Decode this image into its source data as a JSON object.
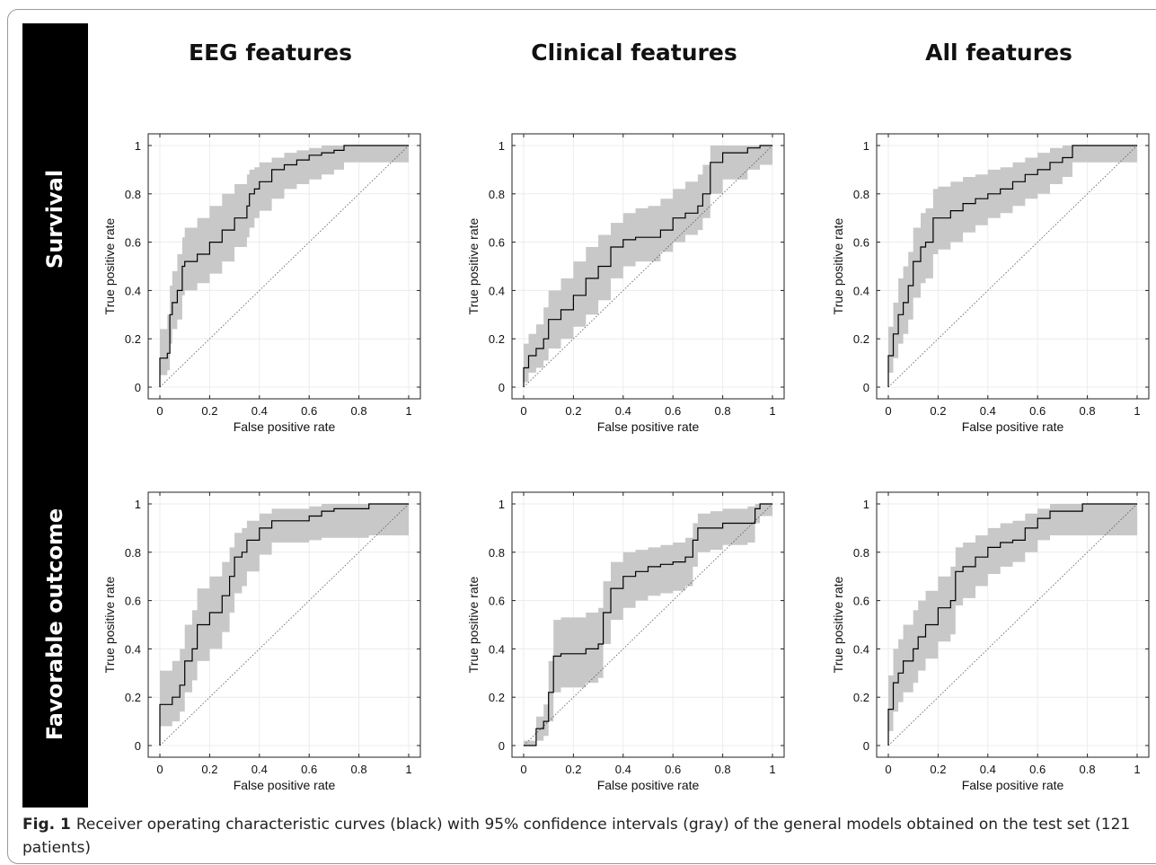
{
  "columns": [
    "EEG features",
    "Clinical features",
    "All features"
  ],
  "rows": [
    "Survival",
    "Favorable outcome"
  ],
  "caption": {
    "label": "Fig. 1",
    "text": "Receiver operating characteristic curves (black) with 95% confidence intervals (gray) of the general models obtained on the test set (121 patients)"
  },
  "colors": {
    "curve": "#000000",
    "ci": "#c8c8c8",
    "band": "#000000"
  },
  "chart_data": [
    {
      "type": "line",
      "row": "Survival",
      "column": "EEG features",
      "xlabel": "False positive rate",
      "ylabel": "True positive rate",
      "xlim": [
        0,
        1
      ],
      "ylim": [
        0,
        1
      ],
      "xticks": [
        "0",
        "0.2",
        "0.4",
        "0.6",
        "0.8",
        "1"
      ],
      "yticks": [
        "0",
        "0.2",
        "0.4",
        "0.6",
        "0.8",
        "1"
      ],
      "grid": true,
      "diagonal": true,
      "x": [
        0,
        0,
        0.03,
        0.04,
        0.05,
        0.07,
        0.09,
        0.1,
        0.15,
        0.2,
        0.25,
        0.3,
        0.35,
        0.36,
        0.38,
        0.4,
        0.45,
        0.5,
        0.55,
        0.6,
        0.65,
        0.7,
        0.74,
        1
      ],
      "y": [
        0,
        0.12,
        0.14,
        0.3,
        0.35,
        0.4,
        0.5,
        0.52,
        0.55,
        0.6,
        0.65,
        0.7,
        0.75,
        0.8,
        0.82,
        0.85,
        0.9,
        0.92,
        0.94,
        0.96,
        0.97,
        0.98,
        1,
        1
      ],
      "ci_upper": [
        0.24,
        0.24,
        0.3,
        0.42,
        0.48,
        0.55,
        0.62,
        0.66,
        0.7,
        0.75,
        0.8,
        0.84,
        0.88,
        0.9,
        0.91,
        0.93,
        0.95,
        0.97,
        0.98,
        0.99,
        1,
        1,
        1,
        1
      ],
      "ci_lower": [
        0.05,
        0.05,
        0.07,
        0.18,
        0.24,
        0.28,
        0.38,
        0.4,
        0.43,
        0.47,
        0.52,
        0.58,
        0.62,
        0.66,
        0.7,
        0.73,
        0.78,
        0.82,
        0.84,
        0.86,
        0.88,
        0.9,
        0.93,
        0.93
      ]
    },
    {
      "type": "line",
      "row": "Survival",
      "column": "Clinical features",
      "xlabel": "False positive rate",
      "ylabel": "True positive rate",
      "xlim": [
        0,
        1
      ],
      "ylim": [
        0,
        1
      ],
      "xticks": [
        "0",
        "0.2",
        "0.4",
        "0.6",
        "0.8",
        "1"
      ],
      "yticks": [
        "0",
        "0.2",
        "0.4",
        "0.6",
        "0.8",
        "1"
      ],
      "grid": true,
      "diagonal": true,
      "x": [
        0,
        0,
        0.02,
        0.05,
        0.08,
        0.1,
        0.15,
        0.2,
        0.25,
        0.3,
        0.35,
        0.4,
        0.45,
        0.5,
        0.55,
        0.6,
        0.65,
        0.7,
        0.72,
        0.75,
        0.8,
        0.9,
        0.95,
        1
      ],
      "y": [
        0,
        0.08,
        0.13,
        0.16,
        0.2,
        0.28,
        0.32,
        0.38,
        0.45,
        0.5,
        0.58,
        0.61,
        0.62,
        0.62,
        0.65,
        0.7,
        0.72,
        0.75,
        0.8,
        0.93,
        0.97,
        0.99,
        1,
        1
      ],
      "ci_upper": [
        0.18,
        0.18,
        0.22,
        0.26,
        0.33,
        0.4,
        0.45,
        0.52,
        0.58,
        0.63,
        0.68,
        0.72,
        0.74,
        0.75,
        0.78,
        0.82,
        0.85,
        0.88,
        0.92,
        1,
        1,
        1,
        1,
        1
      ],
      "ci_lower": [
        0.02,
        0.02,
        0.06,
        0.08,
        0.11,
        0.16,
        0.2,
        0.25,
        0.3,
        0.36,
        0.45,
        0.5,
        0.52,
        0.52,
        0.56,
        0.6,
        0.63,
        0.65,
        0.7,
        0.8,
        0.86,
        0.9,
        0.92,
        0.92
      ]
    },
    {
      "type": "line",
      "row": "Survival",
      "column": "All features",
      "xlabel": "False positive rate",
      "ylabel": "True positive rate",
      "xlim": [
        0,
        1
      ],
      "ylim": [
        0,
        1
      ],
      "xticks": [
        "0",
        "0.2",
        "0.4",
        "0.6",
        "0.8",
        "1"
      ],
      "yticks": [
        "0",
        "0.2",
        "0.4",
        "0.6",
        "0.8",
        "1"
      ],
      "grid": true,
      "diagonal": true,
      "x": [
        0,
        0,
        0.02,
        0.04,
        0.06,
        0.08,
        0.1,
        0.13,
        0.15,
        0.18,
        0.2,
        0.25,
        0.3,
        0.35,
        0.4,
        0.45,
        0.5,
        0.55,
        0.6,
        0.65,
        0.7,
        0.74,
        1
      ],
      "y": [
        0,
        0.13,
        0.22,
        0.3,
        0.35,
        0.42,
        0.52,
        0.58,
        0.6,
        0.7,
        0.7,
        0.73,
        0.76,
        0.78,
        0.8,
        0.82,
        0.85,
        0.88,
        0.9,
        0.93,
        0.95,
        1,
        1
      ],
      "ci_upper": [
        0.25,
        0.25,
        0.35,
        0.45,
        0.5,
        0.56,
        0.66,
        0.72,
        0.74,
        0.82,
        0.83,
        0.85,
        0.87,
        0.88,
        0.9,
        0.91,
        0.93,
        0.95,
        0.97,
        0.99,
        1,
        1,
        1
      ],
      "ci_lower": [
        0.06,
        0.06,
        0.12,
        0.18,
        0.22,
        0.28,
        0.37,
        0.43,
        0.45,
        0.55,
        0.57,
        0.6,
        0.64,
        0.67,
        0.7,
        0.72,
        0.75,
        0.78,
        0.8,
        0.84,
        0.87,
        0.93,
        0.93
      ]
    },
    {
      "type": "line",
      "row": "Favorable outcome",
      "column": "EEG features",
      "xlabel": "False positive rate",
      "ylabel": "True positive rate",
      "xlim": [
        0,
        1
      ],
      "ylim": [
        0,
        1
      ],
      "xticks": [
        "0",
        "0.2",
        "0.4",
        "0.6",
        "0.8",
        "1"
      ],
      "yticks": [
        "0",
        "0.2",
        "0.4",
        "0.6",
        "0.8",
        "1"
      ],
      "grid": true,
      "diagonal": true,
      "x": [
        0,
        0,
        0.05,
        0.08,
        0.1,
        0.13,
        0.15,
        0.2,
        0.25,
        0.28,
        0.3,
        0.33,
        0.35,
        0.4,
        0.45,
        0.5,
        0.6,
        0.65,
        0.7,
        0.84,
        1
      ],
      "y": [
        0,
        0.17,
        0.2,
        0.25,
        0.35,
        0.4,
        0.5,
        0.55,
        0.62,
        0.7,
        0.78,
        0.8,
        0.85,
        0.9,
        0.93,
        0.93,
        0.95,
        0.97,
        0.98,
        1,
        1
      ],
      "ci_upper": [
        0.31,
        0.31,
        0.35,
        0.4,
        0.5,
        0.56,
        0.65,
        0.7,
        0.76,
        0.82,
        0.88,
        0.9,
        0.93,
        0.96,
        0.98,
        0.98,
        0.99,
        1,
        1,
        1,
        1
      ],
      "ci_lower": [
        0.08,
        0.08,
        0.1,
        0.14,
        0.22,
        0.27,
        0.35,
        0.4,
        0.47,
        0.55,
        0.63,
        0.66,
        0.72,
        0.79,
        0.84,
        0.84,
        0.85,
        0.86,
        0.86,
        0.87,
        0.87
      ]
    },
    {
      "type": "line",
      "row": "Favorable outcome",
      "column": "Clinical features",
      "xlabel": "False positive rate",
      "ylabel": "True positive rate",
      "xlim": [
        0,
        1
      ],
      "ylim": [
        0,
        1
      ],
      "xticks": [
        "0",
        "0.2",
        "0.4",
        "0.6",
        "0.8",
        "1"
      ],
      "yticks": [
        "0",
        "0.2",
        "0.4",
        "0.6",
        "0.8",
        "1"
      ],
      "grid": true,
      "diagonal": true,
      "x": [
        0,
        0.05,
        0.08,
        0.1,
        0.12,
        0.15,
        0.2,
        0.25,
        0.3,
        0.32,
        0.35,
        0.4,
        0.45,
        0.5,
        0.55,
        0.6,
        0.65,
        0.68,
        0.7,
        0.75,
        0.8,
        0.9,
        0.93,
        0.95,
        1
      ],
      "y": [
        0,
        0.07,
        0.1,
        0.22,
        0.37,
        0.38,
        0.38,
        0.4,
        0.42,
        0.55,
        0.65,
        0.7,
        0.72,
        0.74,
        0.75,
        0.76,
        0.78,
        0.85,
        0.9,
        0.9,
        0.92,
        0.92,
        0.98,
        1,
        1
      ],
      "ci_upper": [
        0.02,
        0.12,
        0.17,
        0.35,
        0.52,
        0.53,
        0.53,
        0.55,
        0.57,
        0.68,
        0.76,
        0.8,
        0.81,
        0.82,
        0.83,
        0.84,
        0.86,
        0.92,
        0.96,
        0.97,
        0.98,
        0.99,
        1,
        1,
        1
      ],
      "ci_lower": [
        0,
        0.02,
        0.04,
        0.1,
        0.22,
        0.24,
        0.24,
        0.26,
        0.28,
        0.42,
        0.52,
        0.57,
        0.6,
        0.62,
        0.63,
        0.64,
        0.66,
        0.74,
        0.8,
        0.81,
        0.83,
        0.84,
        0.92,
        0.95,
        0.95
      ]
    },
    {
      "type": "line",
      "row": "Favorable outcome",
      "column": "All features",
      "xlabel": "False positive rate",
      "ylabel": "True positive rate",
      "xlim": [
        0,
        1
      ],
      "ylim": [
        0,
        1
      ],
      "xticks": [
        "0",
        "0.2",
        "0.4",
        "0.6",
        "0.8",
        "1"
      ],
      "yticks": [
        "0",
        "0.2",
        "0.4",
        "0.6",
        "0.8",
        "1"
      ],
      "grid": true,
      "diagonal": true,
      "x": [
        0,
        0,
        0.02,
        0.04,
        0.06,
        0.1,
        0.12,
        0.15,
        0.2,
        0.25,
        0.27,
        0.3,
        0.35,
        0.4,
        0.45,
        0.5,
        0.55,
        0.6,
        0.65,
        0.78,
        1
      ],
      "y": [
        0,
        0.15,
        0.26,
        0.3,
        0.35,
        0.4,
        0.45,
        0.5,
        0.57,
        0.6,
        0.72,
        0.74,
        0.78,
        0.82,
        0.84,
        0.85,
        0.9,
        0.94,
        0.97,
        1,
        1
      ],
      "ci_upper": [
        0.29,
        0.29,
        0.4,
        0.44,
        0.5,
        0.56,
        0.6,
        0.64,
        0.7,
        0.74,
        0.82,
        0.84,
        0.87,
        0.9,
        0.92,
        0.93,
        0.96,
        0.98,
        1,
        1,
        1
      ],
      "ci_lower": [
        0.06,
        0.06,
        0.14,
        0.18,
        0.22,
        0.26,
        0.31,
        0.36,
        0.43,
        0.46,
        0.58,
        0.61,
        0.66,
        0.71,
        0.74,
        0.76,
        0.8,
        0.85,
        0.87,
        0.87,
        0.87
      ]
    }
  ]
}
